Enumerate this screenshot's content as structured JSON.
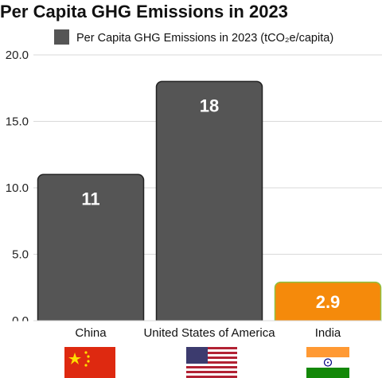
{
  "chart_data": {
    "type": "bar",
    "title": "Per Capita GHG Emissions in 2023",
    "legend": "Per Capita GHG Emissions in 2023 (tCO₂e/capita)",
    "legend_position": "top",
    "categories": [
      "China",
      "United States of America",
      "India"
    ],
    "values": [
      11,
      18,
      2.9
    ],
    "value_labels": [
      "11",
      "18",
      "2.9"
    ],
    "ylim": [
      0,
      20
    ],
    "yticks": [
      "0.0",
      "5.0",
      "10.0",
      "15.0",
      "20.0"
    ],
    "ytick_values": [
      0,
      5,
      10,
      15,
      20
    ],
    "grid": true,
    "colors": {
      "bar": "#555555",
      "bar_edge": "#222222",
      "highlight_bar": "#f58a0b",
      "highlight_edge": "#8fc13f",
      "gridline": "#d9d9d9"
    },
    "flags": [
      "china-flag-icon",
      "usa-flag-icon",
      "india-flag-icon"
    ]
  }
}
